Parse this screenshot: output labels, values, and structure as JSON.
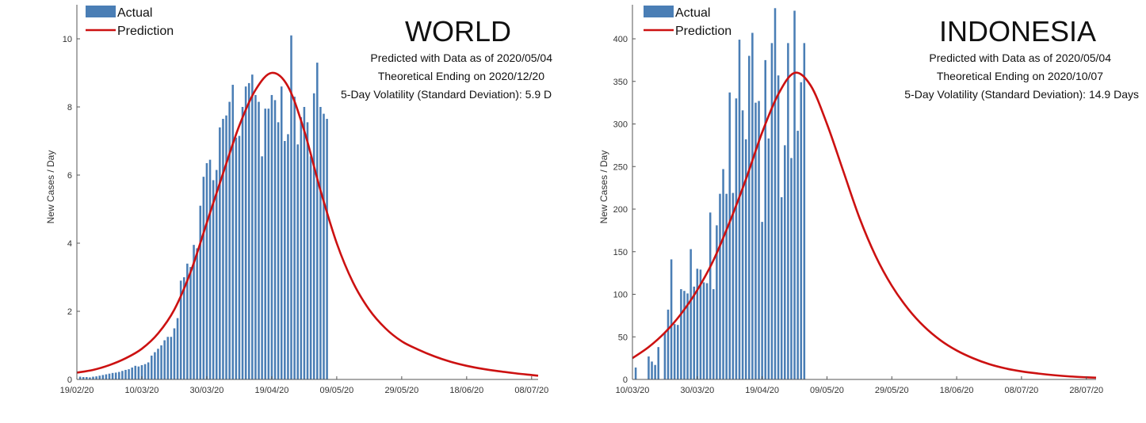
{
  "chart_data": [
    {
      "type": "bar",
      "title": "WORLD",
      "annotations": [
        "Predicted with Data as of 2020/05/04",
        "Theoretical Ending on 2020/12/20",
        "5-Day Volatility (Standard Deviation): 5.9 D"
      ],
      "xlabel": "",
      "ylabel": "New Cases / Day",
      "xlim": [
        "2020-02-19",
        "2020-07-10"
      ],
      "ylim": [
        0,
        11
      ],
      "yticks": [
        0,
        2,
        4,
        6,
        8,
        10
      ],
      "xticks": [
        "19/02/20",
        "10/03/20",
        "30/03/20",
        "19/04/20",
        "09/05/20",
        "29/05/20",
        "18/06/20",
        "08/07/20"
      ],
      "grid": false,
      "legend": {
        "placement": "top-left",
        "entries": [
          "Actual",
          "Prediction"
        ]
      },
      "bar_color": "#4a7eb5",
      "line_color": "#cc1111",
      "series": [
        {
          "name": "Actual",
          "start_date": "2020-02-20",
          "values": [
            0.08,
            0.07,
            0.07,
            0.06,
            0.08,
            0.09,
            0.11,
            0.13,
            0.15,
            0.17,
            0.19,
            0.2,
            0.22,
            0.25,
            0.28,
            0.3,
            0.35,
            0.4,
            0.38,
            0.42,
            0.45,
            0.5,
            0.7,
            0.8,
            0.9,
            1.0,
            1.15,
            1.25,
            1.25,
            1.5,
            1.8,
            2.9,
            3.0,
            3.4,
            3.3,
            3.95,
            3.85,
            5.1,
            5.95,
            6.35,
            6.45,
            5.85,
            6.15,
            7.4,
            7.65,
            7.75,
            8.15,
            8.65,
            7.1,
            7.15,
            8.0,
            8.6,
            8.7,
            8.95,
            8.35,
            8.15,
            6.55,
            7.95,
            7.95,
            8.35,
            8.2,
            7.55,
            8.6,
            7.0,
            7.2,
            10.1,
            8.3,
            6.9,
            7.7,
            8.0,
            7.55,
            6.55,
            8.4,
            9.3,
            8.0,
            7.8,
            7.65
          ]
        },
        {
          "name": "Prediction",
          "points": [
            [
              "2020-02-19",
              0.2
            ],
            [
              "2020-02-24",
              0.28
            ],
            [
              "2020-02-29",
              0.42
            ],
            [
              "2020-03-05",
              0.62
            ],
            [
              "2020-03-10",
              0.9
            ],
            [
              "2020-03-15",
              1.35
            ],
            [
              "2020-03-20",
              2.05
            ],
            [
              "2020-03-25",
              3.15
            ],
            [
              "2020-03-30",
              4.6
            ],
            [
              "2020-04-04",
              6.05
            ],
            [
              "2020-04-09",
              7.45
            ],
            [
              "2020-04-14",
              8.5
            ],
            [
              "2020-04-19",
              9.0
            ],
            [
              "2020-04-24",
              8.6
            ],
            [
              "2020-04-29",
              7.3
            ],
            [
              "2020-05-04",
              5.55
            ],
            [
              "2020-05-09",
              4.0
            ],
            [
              "2020-05-14",
              2.85
            ],
            [
              "2020-05-19",
              2.05
            ],
            [
              "2020-05-24",
              1.5
            ],
            [
              "2020-05-29",
              1.12
            ],
            [
              "2020-06-03",
              0.88
            ],
            [
              "2020-06-08",
              0.68
            ],
            [
              "2020-06-13",
              0.52
            ],
            [
              "2020-06-18",
              0.4
            ],
            [
              "2020-06-23",
              0.31
            ],
            [
              "2020-06-28",
              0.24
            ],
            [
              "2020-07-03",
              0.18
            ],
            [
              "2020-07-08",
              0.13
            ],
            [
              "2020-07-10",
              0.11
            ]
          ]
        }
      ]
    },
    {
      "type": "bar",
      "title": "INDONESIA",
      "annotations": [
        "Predicted with Data as of 2020/05/04",
        "Theoretical Ending on 2020/10/07",
        "5-Day Volatility (Standard Deviation): 14.9 Days"
      ],
      "xlabel": "",
      "ylabel": "New Cases / Day",
      "xlim": [
        "2020-03-10",
        "2020-07-31"
      ],
      "ylim": [
        0,
        440
      ],
      "yticks": [
        0,
        50,
        100,
        150,
        200,
        250,
        300,
        350,
        400
      ],
      "xticks": [
        "10/03/20",
        "30/03/20",
        "19/04/20",
        "09/05/20",
        "29/05/20",
        "18/06/20",
        "08/07/20",
        "28/07/20"
      ],
      "grid": false,
      "legend": {
        "placement": "top-left",
        "entries": [
          "Actual",
          "Prediction"
        ]
      },
      "bar_color": "#4a7eb5",
      "line_color": "#cc1111",
      "series": [
        {
          "name": "Actual",
          "start_date": "2020-03-11",
          "values": [
            14,
            0,
            0,
            0,
            27,
            21,
            17,
            38,
            0,
            55,
            82,
            141,
            65,
            64,
            106,
            104,
            101,
            153,
            109,
            130,
            129,
            114,
            113,
            196,
            106,
            181,
            218,
            247,
            218,
            337,
            219,
            330,
            399,
            316,
            282,
            380,
            407,
            325,
            327,
            185,
            375,
            283,
            395,
            436,
            357,
            214,
            275,
            395,
            260,
            433,
            292,
            349,
            395
          ]
        },
        {
          "name": "Prediction",
          "points": [
            [
              "2020-03-10",
              25
            ],
            [
              "2020-03-15",
              38
            ],
            [
              "2020-03-20",
              55
            ],
            [
              "2020-03-25",
              77
            ],
            [
              "2020-03-30",
              105
            ],
            [
              "2020-04-04",
              140
            ],
            [
              "2020-04-09",
              185
            ],
            [
              "2020-04-14",
              235
            ],
            [
              "2020-04-19",
              290
            ],
            [
              "2020-04-24",
              335
            ],
            [
              "2020-04-29",
              360
            ],
            [
              "2020-05-04",
              345
            ],
            [
              "2020-05-09",
              300
            ],
            [
              "2020-05-14",
              245
            ],
            [
              "2020-05-19",
              190
            ],
            [
              "2020-05-24",
              145
            ],
            [
              "2020-05-29",
              110
            ],
            [
              "2020-06-03",
              83
            ],
            [
              "2020-06-08",
              62
            ],
            [
              "2020-06-13",
              46
            ],
            [
              "2020-06-18",
              34
            ],
            [
              "2020-06-23",
              25
            ],
            [
              "2020-06-28",
              18
            ],
            [
              "2020-07-03",
              13
            ],
            [
              "2020-07-08",
              9.5
            ],
            [
              "2020-07-13",
              7
            ],
            [
              "2020-07-18",
              5
            ],
            [
              "2020-07-23",
              3.5
            ],
            [
              "2020-07-28",
              2.5
            ],
            [
              "2020-07-31",
              2
            ]
          ]
        }
      ]
    }
  ]
}
